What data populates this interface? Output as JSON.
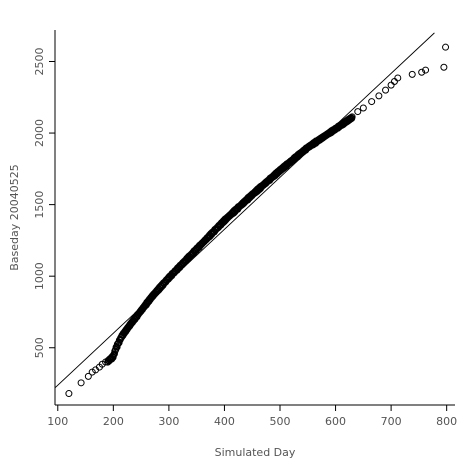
{
  "chart_data": {
    "type": "scatter",
    "title": "",
    "xlabel": "Simulated Day",
    "ylabel": "Baseday 20040525",
    "xlim": [
      95,
      815
    ],
    "ylim": [
      100,
      2720
    ],
    "x_ticks": [
      100,
      200,
      300,
      400,
      500,
      600,
      700,
      800
    ],
    "y_ticks": [
      500,
      1000,
      1500,
      2000,
      2500
    ],
    "grid": false,
    "marker": "open-circle",
    "colors": {
      "points": "#000000",
      "reference_line": "#000000",
      "axes": "#000000"
    },
    "reference_line": {
      "x": [
        95,
        778
      ],
      "y": [
        220,
        2700
      ]
    },
    "outliers": [
      {
        "x": 120,
        "y": 180
      },
      {
        "x": 142,
        "y": 255
      },
      {
        "x": 155,
        "y": 300
      },
      {
        "x": 162,
        "y": 330
      },
      {
        "x": 168,
        "y": 345
      },
      {
        "x": 175,
        "y": 365
      },
      {
        "x": 180,
        "y": 385
      },
      {
        "x": 186,
        "y": 400
      },
      {
        "x": 640,
        "y": 2150
      },
      {
        "x": 650,
        "y": 2175
      },
      {
        "x": 665,
        "y": 2220
      },
      {
        "x": 678,
        "y": 2260
      },
      {
        "x": 690,
        "y": 2300
      },
      {
        "x": 700,
        "y": 2335
      },
      {
        "x": 706,
        "y": 2360
      },
      {
        "x": 712,
        "y": 2385
      },
      {
        "x": 738,
        "y": 2410
      },
      {
        "x": 755,
        "y": 2425
      },
      {
        "x": 762,
        "y": 2440
      },
      {
        "x": 795,
        "y": 2460
      },
      {
        "x": 798,
        "y": 2600
      }
    ],
    "curve": [
      {
        "x": 190,
        "y": 405
      },
      {
        "x": 200,
        "y": 440
      },
      {
        "x": 205,
        "y": 500
      },
      {
        "x": 215,
        "y": 580
      },
      {
        "x": 230,
        "y": 660
      },
      {
        "x": 250,
        "y": 760
      },
      {
        "x": 270,
        "y": 860
      },
      {
        "x": 300,
        "y": 990
      },
      {
        "x": 350,
        "y": 1190
      },
      {
        "x": 400,
        "y": 1390
      },
      {
        "x": 450,
        "y": 1570
      },
      {
        "x": 500,
        "y": 1740
      },
      {
        "x": 550,
        "y": 1900
      },
      {
        "x": 600,
        "y": 2030
      },
      {
        "x": 630,
        "y": 2110
      }
    ]
  }
}
